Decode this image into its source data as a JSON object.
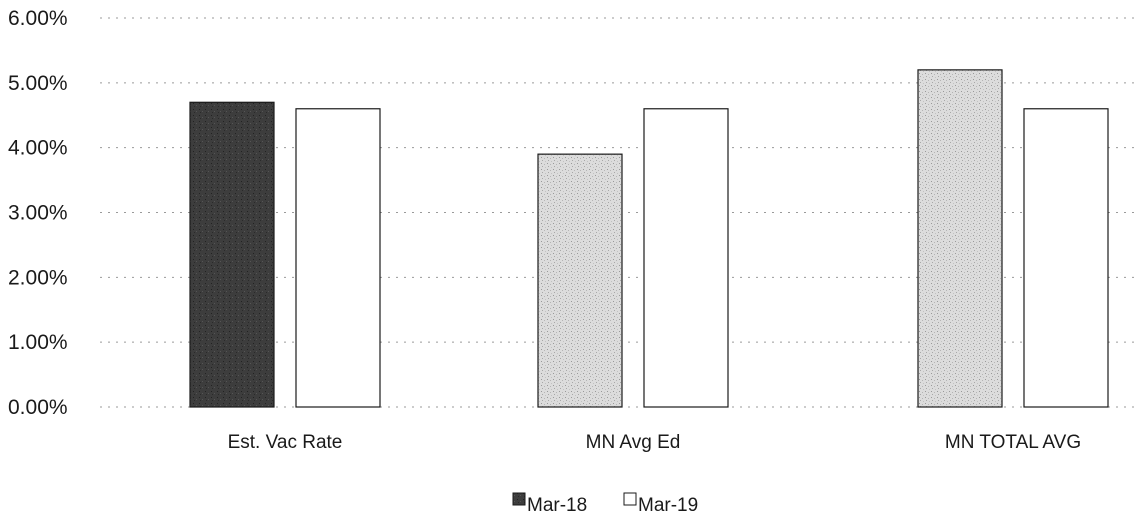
{
  "chart_data": {
    "type": "bar",
    "title": "",
    "xlabel": "",
    "ylabel": "",
    "categories": [
      "Est. Vac Rate",
      "MN Avg Ed",
      "MN TOTAL AVG"
    ],
    "series": [
      {
        "name": "Mar-18",
        "values": [
          4.7,
          3.9,
          5.2
        ],
        "color": "#3a3a3a"
      },
      {
        "name": "Mar-19",
        "values": [
          4.6,
          4.6,
          4.6
        ],
        "color": "#ffffff"
      }
    ],
    "bar_fills": [
      [
        "#3a3a3a",
        "#ffffff"
      ],
      [
        "#d6d6d6",
        "#ffffff"
      ],
      [
        "#d6d6d6",
        "#ffffff"
      ]
    ],
    "ylim": [
      0,
      6
    ],
    "yticks": [
      "0.00%",
      "1.00%",
      "2.00%",
      "3.00%",
      "4.00%",
      "5.00%",
      "6.00%"
    ],
    "grid": true,
    "legend_position": "bottom-center"
  }
}
